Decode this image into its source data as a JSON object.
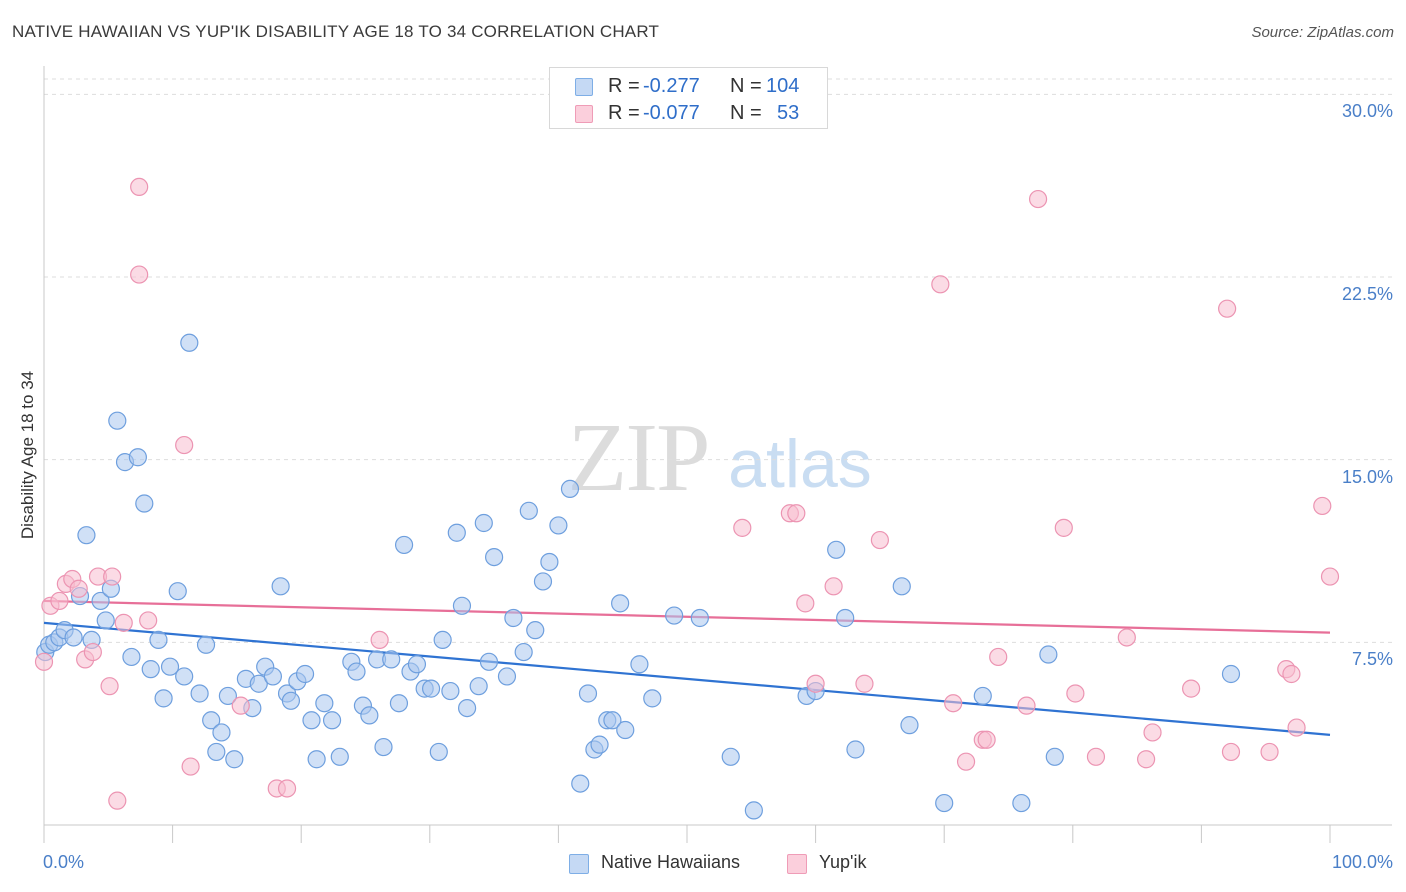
{
  "title": "NATIVE HAWAIIAN VS YUP'IK DISABILITY AGE 18 TO 34 CORRELATION CHART",
  "source": "Source: ZipAtlas.com",
  "watermark": {
    "zip": "ZIP",
    "atlas": "atlas"
  },
  "colors": {
    "blue_fill": "#a9c7ee",
    "blue_stroke": "#6e9fde",
    "blue_line": "#2f73d2",
    "pink_fill": "#f8bdd0",
    "pink_stroke": "#ec94b2",
    "pink_line": "#e76f98",
    "tick_text": "#4a7fc8"
  },
  "legend": {
    "rows": [
      {
        "r_label": "R =",
        "r_value": "-0.277",
        "n_label": "N =",
        "n_value": "104"
      },
      {
        "r_label": "R =",
        "r_value": "-0.077",
        "n_label": "N =",
        "n_value": "53"
      }
    ]
  },
  "chart_data": {
    "type": "scatter",
    "title": "NATIVE HAWAIIAN VS YUP'IK DISABILITY AGE 18 TO 34 CORRELATION CHART",
    "xlabel": "",
    "ylabel": "Disability Age 18 to 34",
    "xlim": [
      0,
      100
    ],
    "ylim": [
      0,
      31
    ],
    "x_tick_labels": [
      "0.0%",
      "100.0%"
    ],
    "y_ticks": [
      7.5,
      15.0,
      22.5,
      30.0
    ],
    "y_tick_labels": [
      "7.5%",
      "15.0%",
      "22.5%",
      "30.0%"
    ],
    "grid": "horizontal dashed",
    "legend_position": "bottom-center",
    "series": [
      {
        "name": "Native Hawaiians",
        "color": "#a9c7ee",
        "trend": {
          "x": [
            0,
            100
          ],
          "y": [
            8.3,
            3.7
          ]
        },
        "points": [
          [
            0.1,
            7.1
          ],
          [
            0.4,
            7.4
          ],
          [
            0.8,
            7.5
          ],
          [
            1.2,
            7.7
          ],
          [
            1.6,
            8.0
          ],
          [
            2.3,
            7.7
          ],
          [
            2.8,
            9.4
          ],
          [
            3.3,
            11.9
          ],
          [
            3.7,
            7.6
          ],
          [
            4.4,
            9.2
          ],
          [
            4.8,
            8.4
          ],
          [
            5.2,
            9.7
          ],
          [
            5.7,
            16.6
          ],
          [
            6.3,
            14.9
          ],
          [
            6.8,
            6.9
          ],
          [
            7.3,
            15.1
          ],
          [
            7.8,
            13.2
          ],
          [
            8.3,
            6.4
          ],
          [
            8.9,
            7.6
          ],
          [
            9.3,
            5.2
          ],
          [
            9.8,
            6.5
          ],
          [
            10.4,
            9.6
          ],
          [
            10.9,
            6.1
          ],
          [
            11.3,
            19.8
          ],
          [
            12.1,
            5.4
          ],
          [
            12.6,
            7.4
          ],
          [
            13.0,
            4.3
          ],
          [
            13.4,
            3.0
          ],
          [
            13.8,
            3.8
          ],
          [
            14.3,
            5.3
          ],
          [
            14.8,
            2.7
          ],
          [
            15.7,
            6.0
          ],
          [
            16.2,
            4.8
          ],
          [
            16.7,
            5.8
          ],
          [
            17.2,
            6.5
          ],
          [
            17.8,
            6.1
          ],
          [
            18.4,
            9.8
          ],
          [
            18.9,
            5.4
          ],
          [
            19.2,
            5.1
          ],
          [
            19.7,
            5.9
          ],
          [
            20.3,
            6.2
          ],
          [
            20.8,
            4.3
          ],
          [
            21.2,
            2.7
          ],
          [
            21.8,
            5.0
          ],
          [
            22.4,
            4.3
          ],
          [
            23.0,
            2.8
          ],
          [
            23.9,
            6.7
          ],
          [
            24.3,
            6.3
          ],
          [
            24.8,
            4.9
          ],
          [
            25.3,
            4.5
          ],
          [
            25.9,
            6.8
          ],
          [
            26.4,
            3.2
          ],
          [
            27.0,
            6.8
          ],
          [
            27.6,
            5.0
          ],
          [
            28.0,
            11.5
          ],
          [
            28.5,
            6.3
          ],
          [
            29.0,
            6.6
          ],
          [
            29.6,
            5.6
          ],
          [
            30.1,
            5.6
          ],
          [
            30.7,
            3.0
          ],
          [
            31.0,
            7.6
          ],
          [
            31.6,
            5.5
          ],
          [
            32.1,
            12.0
          ],
          [
            32.5,
            9.0
          ],
          [
            32.9,
            4.8
          ],
          [
            33.8,
            5.7
          ],
          [
            34.2,
            12.4
          ],
          [
            34.6,
            6.7
          ],
          [
            35.0,
            11.0
          ],
          [
            36.0,
            6.1
          ],
          [
            36.5,
            8.5
          ],
          [
            37.3,
            7.1
          ],
          [
            37.7,
            12.9
          ],
          [
            38.2,
            8.0
          ],
          [
            38.8,
            10.0
          ],
          [
            39.3,
            10.8
          ],
          [
            40.0,
            12.3
          ],
          [
            40.9,
            13.8
          ],
          [
            41.7,
            1.7
          ],
          [
            42.3,
            5.4
          ],
          [
            42.8,
            3.1
          ],
          [
            43.2,
            3.3
          ],
          [
            43.8,
            4.3
          ],
          [
            44.2,
            4.3
          ],
          [
            44.8,
            9.1
          ],
          [
            45.2,
            3.9
          ],
          [
            46.3,
            6.6
          ],
          [
            47.3,
            5.2
          ],
          [
            49.0,
            8.6
          ],
          [
            51.0,
            8.5
          ],
          [
            53.4,
            2.8
          ],
          [
            55.2,
            0.6
          ],
          [
            59.3,
            5.3
          ],
          [
            60.0,
            5.5
          ],
          [
            61.6,
            11.3
          ],
          [
            62.3,
            8.5
          ],
          [
            63.1,
            3.1
          ],
          [
            66.7,
            9.8
          ],
          [
            67.3,
            4.1
          ],
          [
            70.0,
            0.9
          ],
          [
            73.0,
            5.3
          ],
          [
            76.0,
            0.9
          ],
          [
            78.1,
            7.0
          ],
          [
            78.6,
            2.8
          ],
          [
            92.3,
            6.2
          ]
        ]
      },
      {
        "name": "Yup'ik",
        "color": "#f8bdd0",
        "trend": {
          "x": [
            0,
            100
          ],
          "y": [
            9.2,
            7.9
          ]
        },
        "points": [
          [
            0.0,
            6.7
          ],
          [
            0.5,
            9.0
          ],
          [
            1.2,
            9.2
          ],
          [
            1.7,
            9.9
          ],
          [
            2.2,
            10.1
          ],
          [
            2.7,
            9.7
          ],
          [
            3.2,
            6.8
          ],
          [
            3.8,
            7.1
          ],
          [
            4.2,
            10.2
          ],
          [
            5.1,
            5.7
          ],
          [
            5.3,
            10.2
          ],
          [
            5.7,
            1.0
          ],
          [
            6.2,
            8.3
          ],
          [
            7.4,
            26.2
          ],
          [
            7.4,
            22.6
          ],
          [
            8.1,
            8.4
          ],
          [
            10.9,
            15.6
          ],
          [
            11.4,
            2.4
          ],
          [
            15.3,
            4.9
          ],
          [
            18.1,
            1.5
          ],
          [
            18.9,
            1.5
          ],
          [
            26.1,
            7.6
          ],
          [
            54.3,
            12.2
          ],
          [
            58.0,
            12.8
          ],
          [
            58.5,
            12.8
          ],
          [
            59.2,
            9.1
          ],
          [
            60.0,
            5.8
          ],
          [
            61.4,
            9.8
          ],
          [
            63.8,
            5.8
          ],
          [
            65.0,
            11.7
          ],
          [
            69.7,
            22.2
          ],
          [
            70.7,
            5.0
          ],
          [
            71.7,
            2.6
          ],
          [
            73.0,
            3.5
          ],
          [
            73.3,
            3.5
          ],
          [
            74.2,
            6.9
          ],
          [
            76.4,
            4.9
          ],
          [
            77.3,
            25.7
          ],
          [
            79.3,
            12.2
          ],
          [
            80.2,
            5.4
          ],
          [
            81.8,
            2.8
          ],
          [
            84.2,
            7.7
          ],
          [
            85.7,
            2.7
          ],
          [
            86.2,
            3.8
          ],
          [
            89.2,
            5.6
          ],
          [
            92.0,
            21.2
          ],
          [
            92.3,
            3.0
          ],
          [
            95.3,
            3.0
          ],
          [
            96.6,
            6.4
          ],
          [
            97.0,
            6.2
          ],
          [
            97.4,
            4.0
          ],
          [
            99.4,
            13.1
          ],
          [
            100.0,
            10.2
          ]
        ]
      }
    ]
  },
  "bottom_legend": [
    "Native Hawaiians",
    "Yup'ik"
  ]
}
